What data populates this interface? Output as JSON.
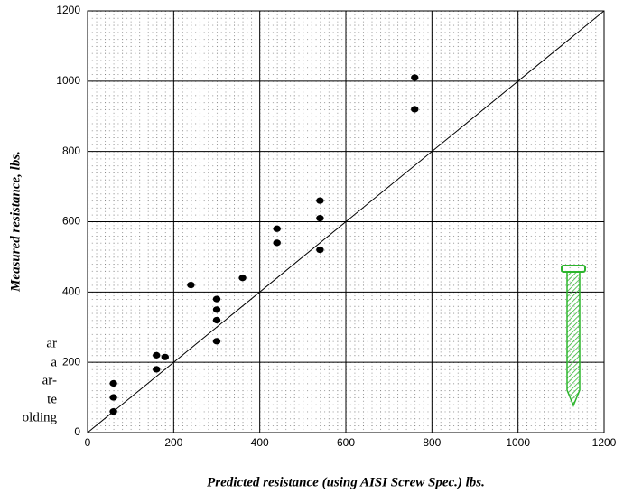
{
  "chart_data": {
    "type": "scatter",
    "xlabel": "Predicted resistance (using AISI Screw Spec.) lbs.",
    "ylabel": "Measured resistance, lbs.",
    "x": [
      60,
      60,
      60,
      160,
      160,
      180,
      240,
      300,
      300,
      300,
      300,
      360,
      440,
      440,
      540,
      540,
      540,
      760,
      760
    ],
    "values": [
      140,
      100,
      60,
      220,
      180,
      215,
      420,
      380,
      350,
      320,
      260,
      440,
      580,
      540,
      660,
      610,
      520,
      1010,
      920
    ],
    "color": "#000000",
    "xlim": [
      0,
      1200
    ],
    "ylim": [
      0,
      1200
    ],
    "xticks": [
      0,
      200,
      400,
      600,
      800,
      1000,
      1200
    ],
    "yticks": [
      0,
      200,
      400,
      600,
      800,
      1000,
      1200
    ],
    "grid": true
  },
  "side_text": [
    "ar",
    "a",
    "ar-",
    "te",
    "olding"
  ]
}
